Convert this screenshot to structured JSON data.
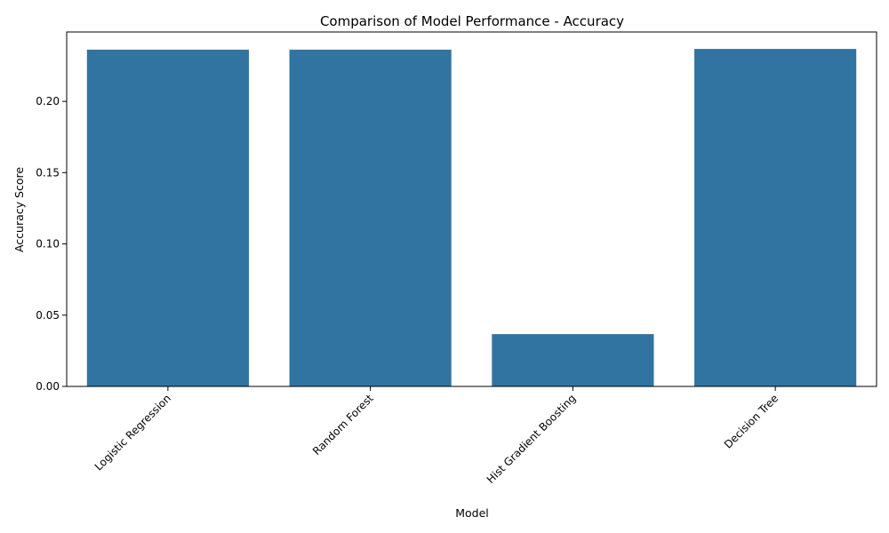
{
  "chart_data": {
    "type": "bar",
    "title": "Comparison of Model Performance - Accuracy",
    "xlabel": "Model",
    "ylabel": "Accuracy Score",
    "categories": [
      "Logistic Regression",
      "Random Forest",
      "Hist Gradient Boosting",
      "Decision Tree"
    ],
    "values": [
      0.2363,
      0.2363,
      0.0367,
      0.2368
    ],
    "ylim": [
      0,
      0.2487
    ],
    "yticks": [
      0.0,
      0.05,
      0.1,
      0.15,
      0.2,
      0.25
    ],
    "ytick_labels": [
      "0.00",
      "0.05",
      "0.10",
      "0.15",
      "0.20"
    ],
    "bar_color": "#3274a1",
    "grid": false,
    "legend": "none"
  }
}
